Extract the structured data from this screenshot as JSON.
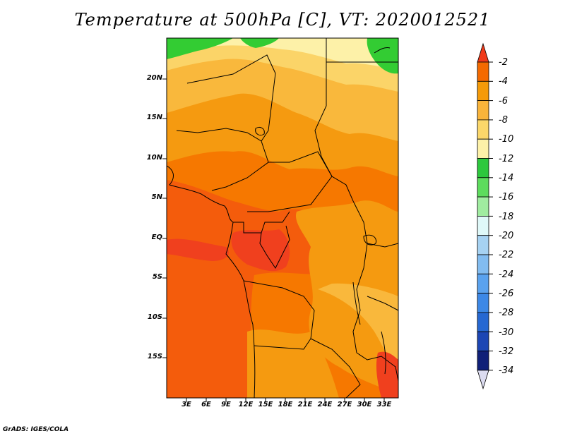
{
  "title": "Temperature at 500hPa [C], VT: 2020012521",
  "credit": "GrADS: IGES/COLA",
  "map": {
    "lat_labels": [
      "20N",
      "15N",
      "10N",
      "5N",
      "EQ",
      "5S",
      "10S",
      "15S"
    ],
    "lon_labels": [
      "3E",
      "6E",
      "9E",
      "12E",
      "15E",
      "18E",
      "21E",
      "24E",
      "27E",
      "30E",
      "33E"
    ]
  },
  "colorbar": {
    "labels": [
      "-2",
      "-4",
      "-6",
      "-8",
      "-10",
      "-12",
      "-14",
      "-16",
      "-18",
      "-20",
      "-22",
      "-24",
      "-26",
      "-28",
      "-30",
      "-32",
      "-34"
    ],
    "colors": [
      "#f03a1a",
      "#f46a00",
      "#f59a08",
      "#f9b43a",
      "#fbd76a",
      "#fdf1a8",
      "#2dc83d",
      "#5ddc5d",
      "#a0eca0",
      "#dff8f8",
      "#a6d2f2",
      "#82bcf0",
      "#5aa2ee",
      "#3c88e6",
      "#2668d2",
      "#1c46b4",
      "#102078",
      "#dcdcf0"
    ]
  },
  "colors": {
    "deep_orange": "#f45c0c",
    "orange": "#f67800",
    "light_orange": "#f59a10",
    "tan": "#f9b83c",
    "pale": "#fbd468",
    "cream": "#fdf1a8",
    "green": "#33cc33",
    "lightgreen": "#66dd66",
    "red": "#f0401e"
  }
}
